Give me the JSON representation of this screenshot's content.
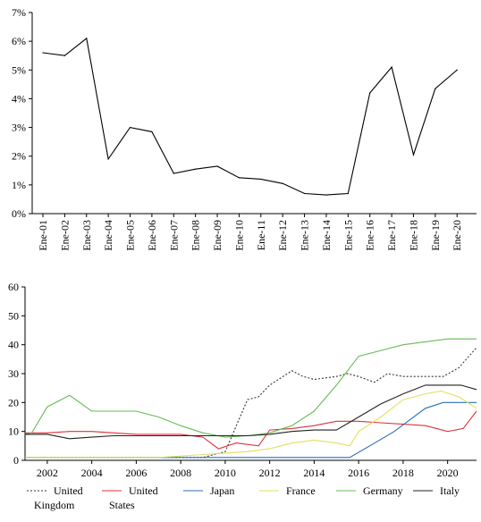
{
  "chart_data": [
    {
      "type": "line",
      "title": "",
      "xlabel": "",
      "ylabel": "",
      "ylim": [
        0,
        7
      ],
      "y_ticks": [
        "0%",
        "1%",
        "2%",
        "3%",
        "4%",
        "5%",
        "6%",
        "7%"
      ],
      "categories": [
        "Ene-01",
        "Ene-02",
        "Ene-03",
        "Ene-04",
        "Ene-05",
        "Ene-06",
        "Ene-07",
        "Ene-08",
        "Ene-09",
        "Ene-10",
        "Ene-11",
        "Ene-12",
        "Ene-13",
        "Ene-14",
        "Ene-15",
        "Ene-16",
        "Ene-17",
        "Ene-18",
        "Ene-19",
        "Ene-20"
      ],
      "series": [
        {
          "color": "#000000",
          "values": [
            5.6,
            5.5,
            6.1,
            1.9,
            3.0,
            2.85,
            1.4,
            1.55,
            1.65,
            1.25,
            1.2,
            1.05,
            0.7,
            0.65,
            0.7,
            4.2,
            5.1,
            2.05,
            4.35,
            5.0
          ]
        }
      ],
      "grid": false
    },
    {
      "type": "line",
      "title": "",
      "xlabel": "",
      "ylabel": "",
      "ylim": [
        0,
        60
      ],
      "xlim": [
        2001,
        2021.3
      ],
      "y_ticks": [
        "0",
        "10",
        "20",
        "30",
        "40",
        "50",
        "60"
      ],
      "x_ticks": [
        "2002",
        "2004",
        "2006",
        "2008",
        "2010",
        "2012",
        "2014",
        "2016",
        "2018",
        "2020"
      ],
      "legend_position": "bottom",
      "series": [
        {
          "name": "United Kingdom",
          "legend_lines": [
            "United",
            "Kingdom"
          ],
          "color": "#333333",
          "dashed": true,
          "x": [
            2001,
            2002,
            2003,
            2004,
            2005,
            2006,
            2007,
            2008,
            2009,
            2010,
            2011,
            2011.5,
            2012,
            2013,
            2013.5,
            2014,
            2015,
            2015.5,
            2016,
            2016.7,
            2017.3,
            2018,
            2019,
            2019.8,
            2020.5,
            2021.3
          ],
          "y": [
            1,
            1,
            1,
            1,
            1,
            1,
            1,
            1,
            1,
            3,
            21,
            22,
            26,
            31,
            29,
            28,
            29,
            30,
            29,
            27,
            30,
            29,
            29,
            29,
            32,
            39
          ]
        },
        {
          "name": "United States",
          "legend_lines": [
            "United",
            "States"
          ],
          "color": "#e0303a",
          "dashed": false,
          "x": [
            2001,
            2002,
            2003,
            2004,
            2005,
            2006,
            2007,
            2008,
            2009,
            2009.7,
            2010.5,
            2011.5,
            2012,
            2013,
            2014,
            2015,
            2016,
            2017,
            2018,
            2019,
            2020,
            2020.7,
            2021.3
          ],
          "y": [
            9.5,
            9.5,
            10,
            10,
            9.5,
            9,
            9,
            9,
            8,
            4,
            6,
            5,
            10.5,
            11,
            12,
            13.5,
            13.5,
            13,
            12.5,
            12,
            10,
            11,
            17
          ]
        },
        {
          "name": "Japan",
          "legend_lines": [
            "Japan"
          ],
          "color": "#2a6fb5",
          "dashed": false,
          "x": [
            2001,
            2002,
            2003,
            2004,
            2005,
            2006,
            2007,
            2008,
            2009,
            2010,
            2011,
            2012,
            2013,
            2014,
            2015,
            2015.6,
            2016.5,
            2017.6,
            2018.3,
            2019,
            2019.8,
            2020.5,
            2021.3
          ],
          "y": [
            1,
            1,
            1,
            1,
            1,
            1,
            1,
            1,
            1,
            1,
            1,
            1,
            1,
            1,
            1,
            1,
            5,
            10,
            14,
            18,
            20,
            20,
            20
          ]
        },
        {
          "name": "France",
          "legend_lines": [
            "France"
          ],
          "color": "#e0e060",
          "dashed": false,
          "x": [
            2001,
            2002,
            2003,
            2004,
            2005,
            2006,
            2007,
            2008,
            2009,
            2010,
            2011,
            2012,
            2013,
            2014,
            2015,
            2015.6,
            2016,
            2017,
            2018,
            2019,
            2019.7,
            2020.5,
            2021.3
          ],
          "y": [
            1,
            1,
            1,
            1,
            1,
            1,
            1,
            1.5,
            2,
            2.5,
            3,
            4,
            6,
            7,
            6,
            5,
            10,
            15,
            21,
            23,
            24,
            22,
            18
          ]
        },
        {
          "name": "Germany",
          "legend_lines": [
            "Germany"
          ],
          "color": "#66bb55",
          "dashed": false,
          "x": [
            2001,
            2001.3,
            2002,
            2003,
            2004,
            2005,
            2006,
            2007,
            2008,
            2009,
            2010,
            2011,
            2012,
            2013,
            2014,
            2015,
            2016,
            2017,
            2018,
            2019,
            2020,
            2021.3
          ],
          "y": [
            9,
            9.5,
            18.5,
            22.5,
            17,
            17,
            17,
            15,
            12,
            9.5,
            8,
            8.5,
            9.5,
            12,
            17,
            26,
            36,
            38,
            40,
            41,
            42,
            42
          ]
        },
        {
          "name": "Italy",
          "legend_lines": [
            "Italy"
          ],
          "color": "#222222",
          "dashed": false,
          "x": [
            2001,
            2002,
            2003,
            2004,
            2005,
            2006,
            2007,
            2008,
            2009,
            2010,
            2011,
            2012,
            2013,
            2014,
            2015,
            2016,
            2017,
            2018,
            2019,
            2020,
            2020.6,
            2021.3
          ],
          "y": [
            9,
            9,
            7.5,
            8,
            8.5,
            8.5,
            8.5,
            8.5,
            8.5,
            8.5,
            8.5,
            9,
            10,
            10.5,
            10.5,
            15,
            19.5,
            23,
            26,
            26,
            26,
            24.5
          ]
        }
      ]
    }
  ]
}
